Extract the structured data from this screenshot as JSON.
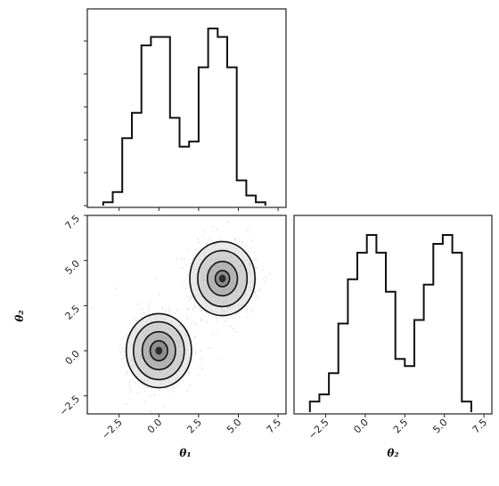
{
  "chart_data": {
    "type": "corner",
    "title": "",
    "parameters": [
      "θ₁",
      "θ₂"
    ],
    "axis_labels": {
      "x_left": "θ₁",
      "x_right": "θ₂",
      "y_left": "θ₂"
    },
    "tick_labels": [
      "−2.5",
      "0.0",
      "2.5",
      "5.0",
      "7.5"
    ],
    "ticks": [
      -2.5,
      0.0,
      2.5,
      5.0,
      7.5
    ],
    "xlim": [
      -4.5,
      8.0
    ],
    "ylim_scatter": [
      -3.5,
      7.5
    ],
    "histogram_theta1": {
      "type": "histogram",
      "bin_edges": [
        -3.5,
        -2.9,
        -2.3,
        -1.7,
        -1.1,
        -0.5,
        0.1,
        0.7,
        1.3,
        1.9,
        2.5,
        3.1,
        3.7,
        4.3,
        4.9,
        5.5,
        6.1,
        6.7
      ],
      "counts": [
        2,
        8,
        40,
        55,
        95,
        100,
        100,
        52,
        35,
        38,
        82,
        105,
        100,
        82,
        15,
        6,
        2
      ],
      "relative": true
    },
    "histogram_theta2": {
      "type": "histogram",
      "bin_edges": [
        -3.5,
        -2.9,
        -2.3,
        -1.7,
        -1.1,
        -0.5,
        0.1,
        0.7,
        1.3,
        1.9,
        2.5,
        3.1,
        3.7,
        4.3,
        4.9,
        5.5,
        6.1,
        6.7
      ],
      "counts": [
        6,
        10,
        22,
        50,
        75,
        90,
        100,
        90,
        68,
        30,
        26,
        52,
        72,
        95,
        100,
        90,
        6
      ],
      "relative": true
    },
    "scatter_2d": {
      "type": "scatter",
      "x_label": "θ₁",
      "y_label": "θ₂",
      "modes": [
        {
          "x": 0.0,
          "y": 0.0,
          "contour_radii": [
            0.55,
            1.05,
            1.6,
            2.05
          ]
        },
        {
          "x": 4.0,
          "y": 4.0,
          "contour_radii": [
            0.45,
            0.95,
            1.55,
            2.05
          ]
        }
      ],
      "grid": false
    }
  }
}
